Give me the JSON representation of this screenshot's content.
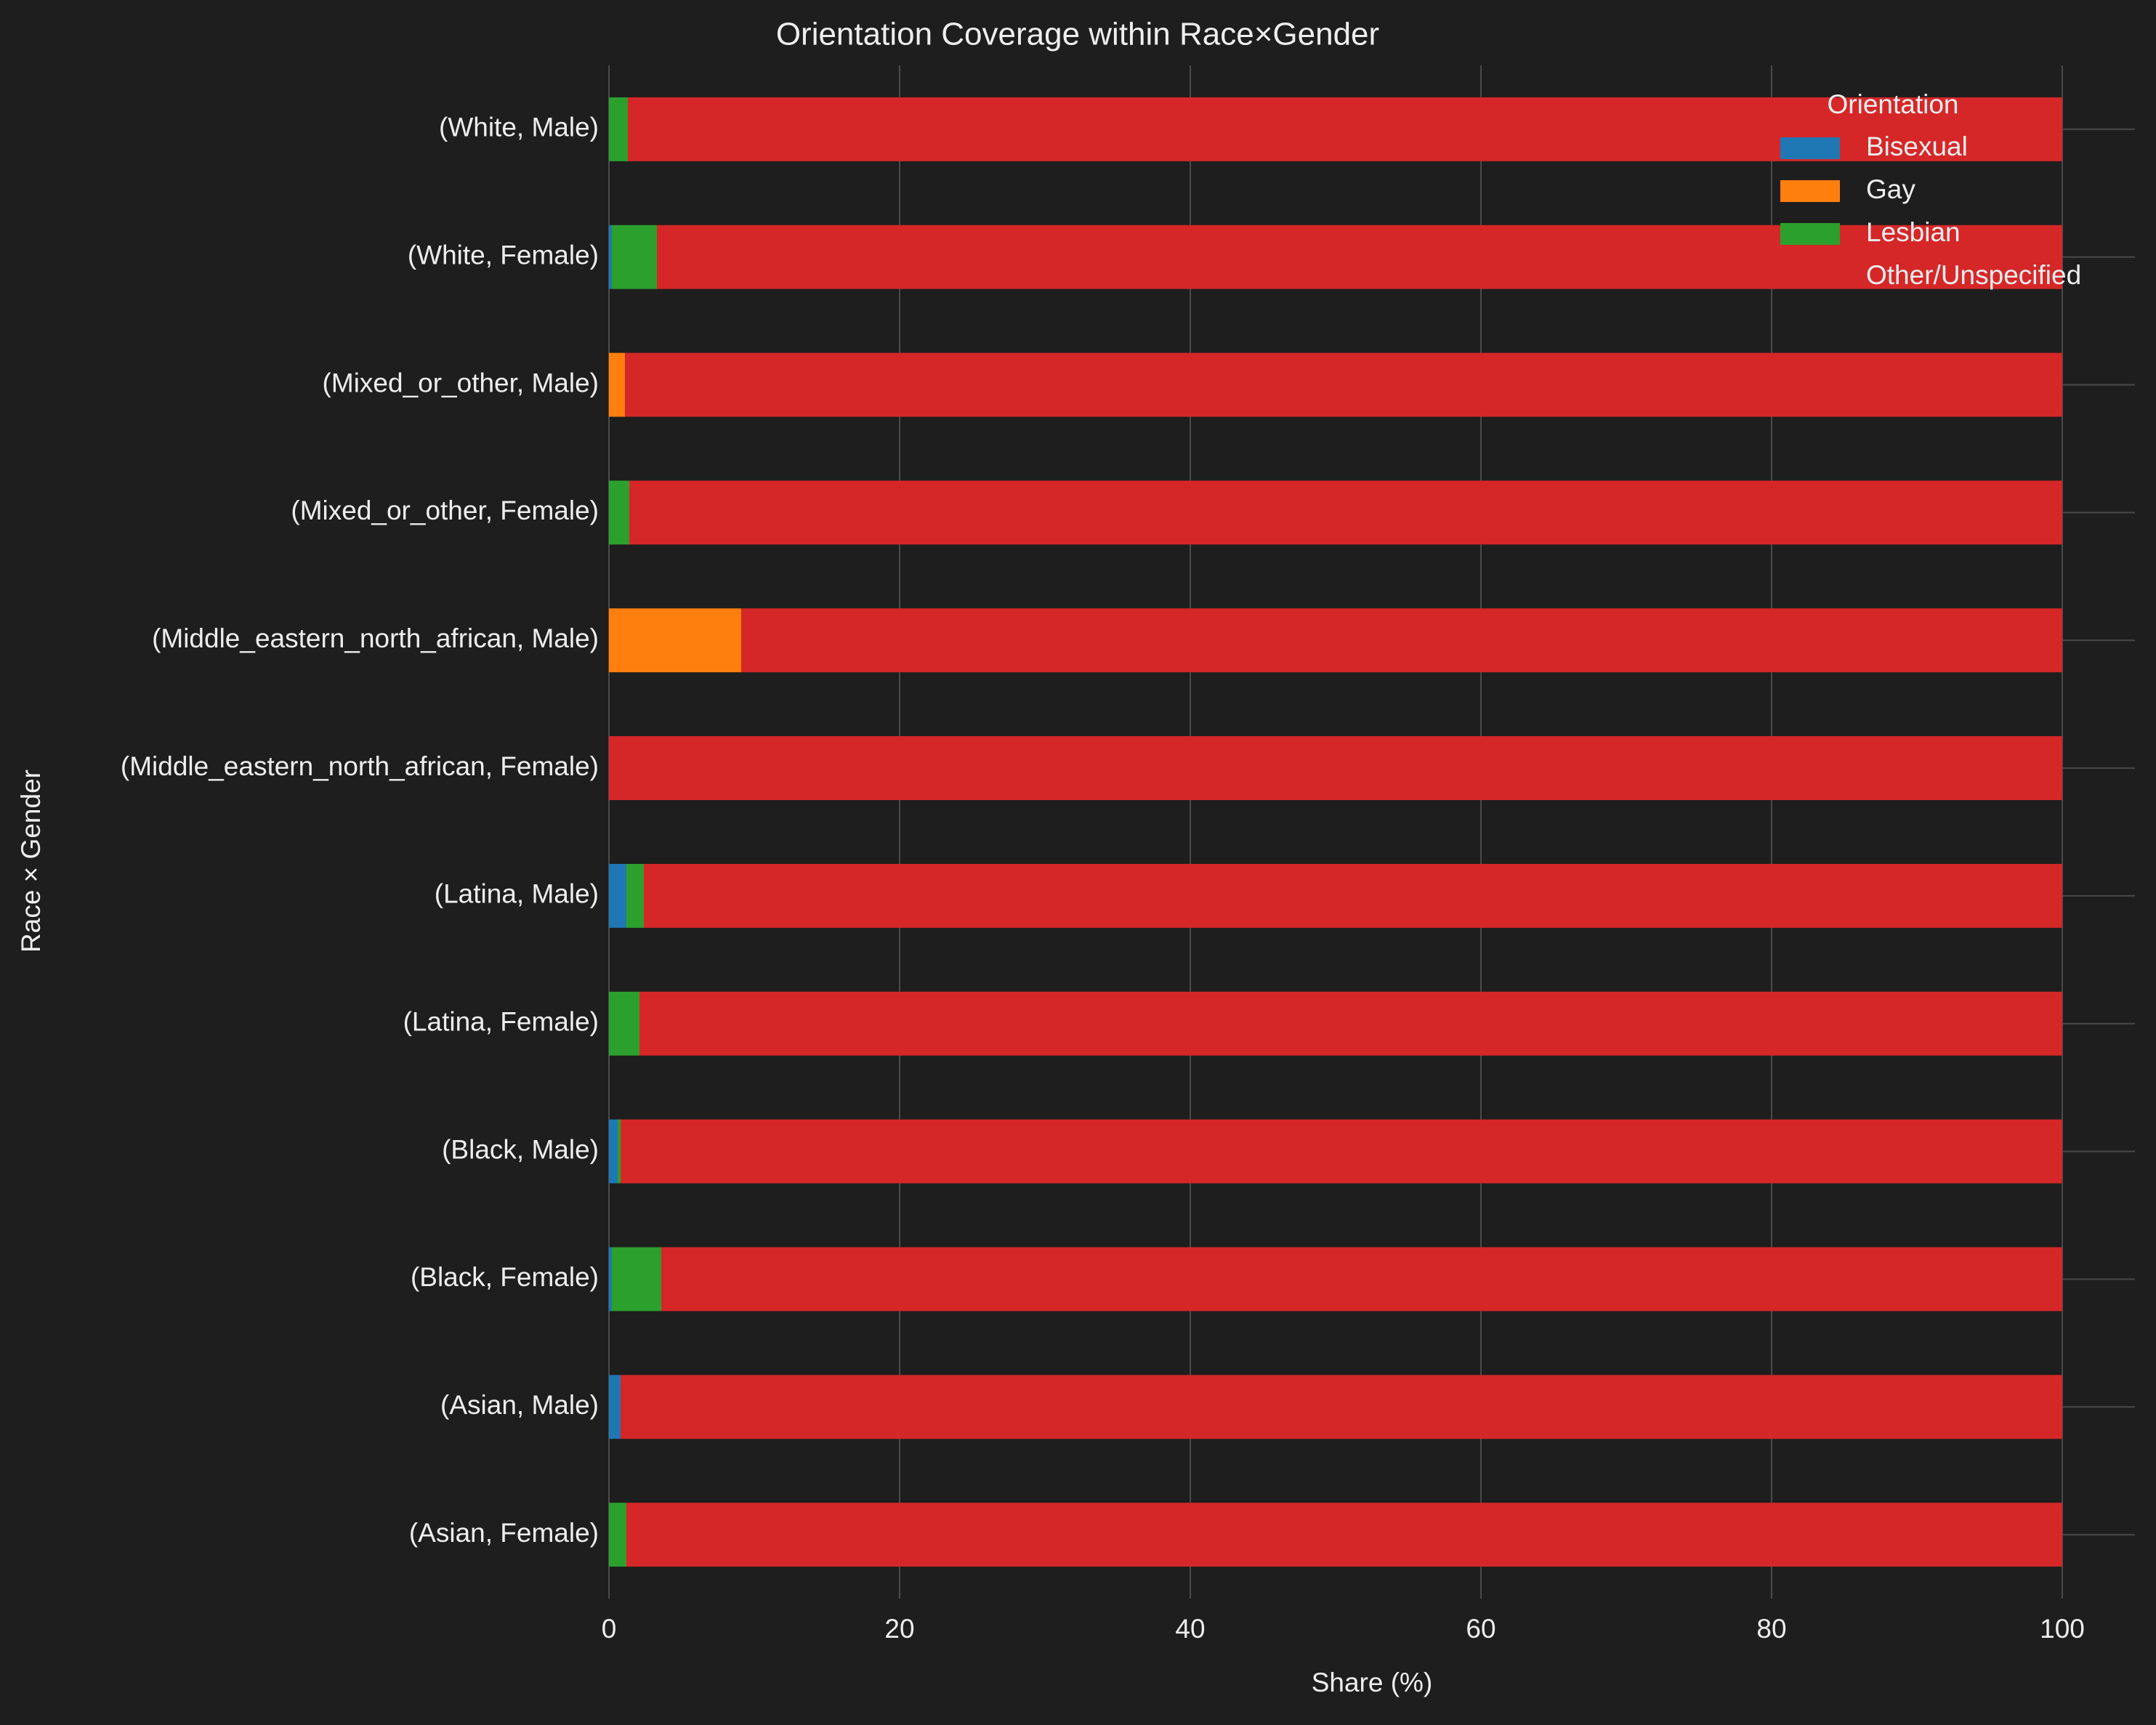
{
  "chart_data": {
    "type": "bar",
    "orientation": "horizontal",
    "stacked": true,
    "title": "Orientation Coverage within Race×Gender",
    "xlabel": "Share (%)",
    "ylabel": "Race × Gender",
    "xlim": [
      0,
      105
    ],
    "xticks": [
      0,
      20,
      40,
      60,
      80,
      100
    ],
    "grid": true,
    "legend_title": "Orientation",
    "legend_position": "top-right",
    "categories": [
      "(White, Male)",
      "(White, Female)",
      "(Mixed_or_other, Male)",
      "(Mixed_or_other, Female)",
      "(Middle_eastern_north_african, Male)",
      "(Middle_eastern_north_african, Female)",
      "(Latina, Male)",
      "(Latina, Female)",
      "(Black, Male)",
      "(Black, Female)",
      "(Asian, Male)",
      "(Asian, Female)"
    ],
    "series": [
      {
        "name": "Bisexual",
        "color": "#1f77b4",
        "values": [
          0,
          0.2,
          0,
          0,
          0,
          0,
          1.2,
          0,
          0.6,
          0.2,
          0.8,
          0
        ]
      },
      {
        "name": "Gay",
        "color": "#ff7f0e",
        "values": [
          0,
          0,
          1.1,
          0,
          9.1,
          0,
          0,
          0,
          0,
          0,
          0,
          0
        ]
      },
      {
        "name": "Lesbian",
        "color": "#2ca02c",
        "values": [
          1.3,
          3.1,
          0,
          1.4,
          0,
          0,
          1.2,
          2.1,
          0.2,
          3.4,
          0,
          1.2
        ]
      },
      {
        "name": "Other/Unspecified",
        "color": "#d62728",
        "values": [
          98.7,
          96.7,
          98.9,
          98.6,
          90.9,
          100,
          97.6,
          97.9,
          99.2,
          96.4,
          99.2,
          98.8
        ]
      }
    ]
  }
}
